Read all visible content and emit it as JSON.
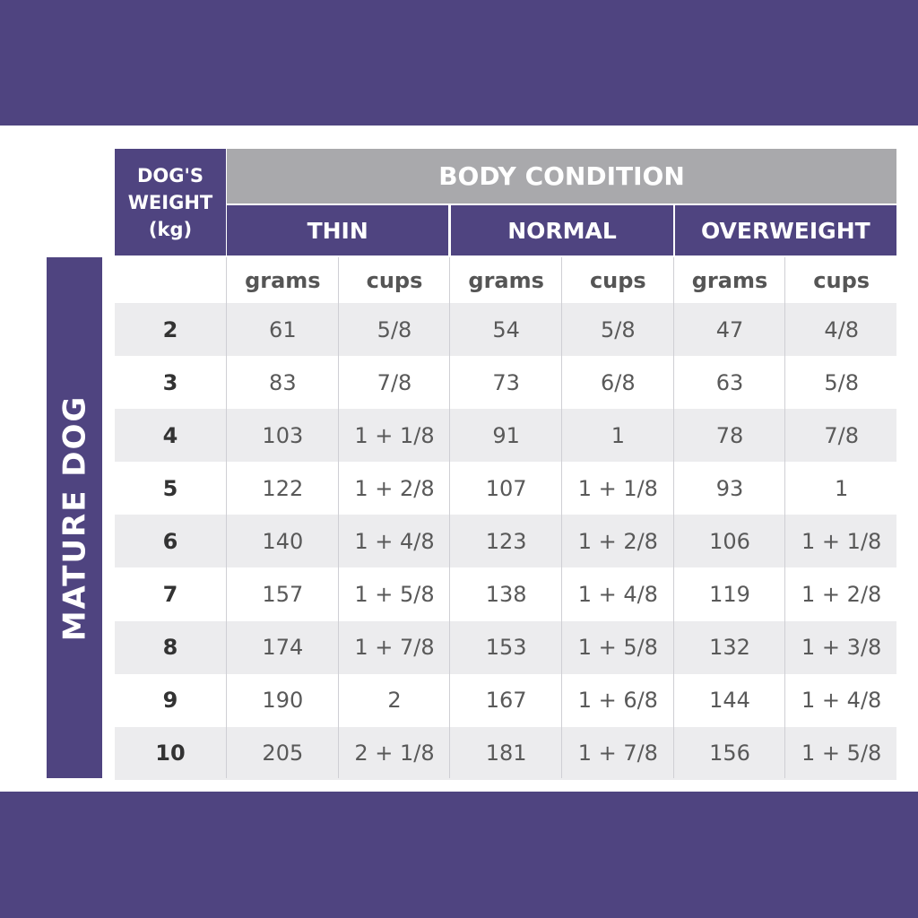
{
  "table": {
    "weight_header": "DOG'S WEIGHT (kg)",
    "group_header": "BODY CONDITION",
    "conditions": [
      "THIN",
      "NORMAL",
      "OVERWEIGHT"
    ],
    "units": [
      "grams",
      "cups",
      "grams",
      "cups",
      "grams",
      "cups"
    ],
    "side_label": "MATURE DOG",
    "rows": [
      [
        2,
        61,
        "5/8",
        54,
        "5/8",
        47,
        "4/8"
      ],
      [
        3,
        83,
        "7/8",
        73,
        "6/8",
        63,
        "5/8"
      ],
      [
        4,
        103,
        "1 + 1/8",
        91,
        "1",
        78,
        "7/8"
      ],
      [
        5,
        122,
        "1 + 2/8",
        107,
        "1 + 1/8",
        93,
        "1"
      ],
      [
        6,
        140,
        "1 + 4/8",
        123,
        "1 + 2/8",
        106,
        "1 + 1/8"
      ],
      [
        7,
        157,
        "1 + 5/8",
        138,
        "1 + 4/8",
        119,
        "1 + 2/8"
      ],
      [
        8,
        174,
        "1 + 7/8",
        153,
        "1 + 5/8",
        132,
        "1 + 3/8"
      ],
      [
        9,
        190,
        "2",
        167,
        "1 + 6/8",
        144,
        "1 + 4/8"
      ],
      [
        10,
        205,
        "2 + 1/8",
        181,
        "1 + 7/8",
        156,
        "1 + 5/8"
      ]
    ]
  }
}
